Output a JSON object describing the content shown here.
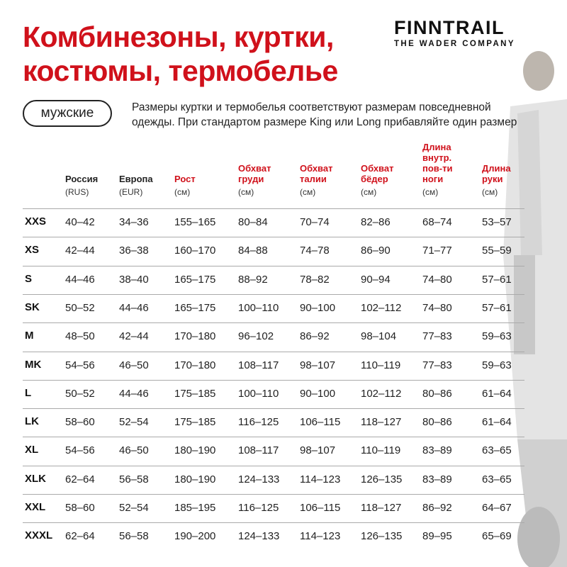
{
  "title": {
    "line1": "Комбинезоны, куртки,",
    "line2": "костюмы, термобелье"
  },
  "logo": {
    "brand": "FINNTRAIL",
    "tagline": "THE WADER COMPANY"
  },
  "category_pill": "мужские",
  "note": {
    "line1": "Размеры куртки и термобелья соответствуют размерам повседневной",
    "line2": "одежды. При стандартом размере King или Long прибавляйте один размер"
  },
  "accent_color": "#d0111b",
  "columns": [
    {
      "title": [
        "Россия"
      ],
      "unit": "(RUS)",
      "color": "dark"
    },
    {
      "title": [
        "Европа"
      ],
      "unit": "(EUR)",
      "color": "dark"
    },
    {
      "title": [
        "Рост"
      ],
      "unit": "(см)",
      "color": "red"
    },
    {
      "title": [
        "Обхват",
        "груди"
      ],
      "unit": "(см)",
      "color": "red"
    },
    {
      "title": [
        "Обхват",
        "талии"
      ],
      "unit": "(см)",
      "color": "red"
    },
    {
      "title": [
        "Обхват",
        "бёдер"
      ],
      "unit": "(см)",
      "color": "red"
    },
    {
      "title": [
        "Длина",
        "внутр.",
        "пов-ти",
        "ноги"
      ],
      "unit": "(см)",
      "color": "red"
    },
    {
      "title": [
        "Длина",
        "руки"
      ],
      "unit": "(см)",
      "color": "red"
    }
  ],
  "rows": [
    {
      "size": "XXS",
      "values": [
        "40–42",
        "34–36",
        "155–165",
        "80–84",
        "70–74",
        "82–86",
        "68–74",
        "53–57"
      ]
    },
    {
      "size": "XS",
      "values": [
        "42–44",
        "36–38",
        "160–170",
        "84–88",
        "74–78",
        "86–90",
        "71–77",
        "55–59"
      ]
    },
    {
      "size": "S",
      "values": [
        "44–46",
        "38–40",
        "165–175",
        "88–92",
        "78–82",
        "90–94",
        "74–80",
        "57–61"
      ]
    },
    {
      "size": "SK",
      "values": [
        "50–52",
        "44–46",
        "165–175",
        "100–110",
        "90–100",
        "102–112",
        "74–80",
        "57–61"
      ]
    },
    {
      "size": "M",
      "values": [
        "48–50",
        "42–44",
        "170–180",
        "96–102",
        "86–92",
        "98–104",
        "77–83",
        "59–63"
      ]
    },
    {
      "size": "MK",
      "values": [
        "54–56",
        "46–50",
        "170–180",
        "108–117",
        "98–107",
        "110–119",
        "77–83",
        "59–63"
      ]
    },
    {
      "size": "L",
      "values": [
        "50–52",
        "44–46",
        "175–185",
        "100–110",
        "90–100",
        "102–112",
        "80–86",
        "61–64"
      ]
    },
    {
      "size": "LK",
      "values": [
        "58–60",
        "52–54",
        "175–185",
        "116–125",
        "106–115",
        "118–127",
        "80–86",
        "61–64"
      ]
    },
    {
      "size": "XL",
      "values": [
        "54–56",
        "46–50",
        "180–190",
        "108–117",
        "98–107",
        "110–119",
        "83–89",
        "63–65"
      ]
    },
    {
      "size": "XLK",
      "values": [
        "62–64",
        "56–58",
        "180–190",
        "124–133",
        "114–123",
        "126–135",
        "83–89",
        "63–65"
      ]
    },
    {
      "size": "XXL",
      "values": [
        "58–60",
        "52–54",
        "185–195",
        "116–125",
        "106–115",
        "118–127",
        "86–92",
        "64–67"
      ]
    },
    {
      "size": "XXXL",
      "values": [
        "62–64",
        "56–58",
        "190–200",
        "124–133",
        "114–123",
        "126–135",
        "89–95",
        "65–69"
      ]
    }
  ]
}
